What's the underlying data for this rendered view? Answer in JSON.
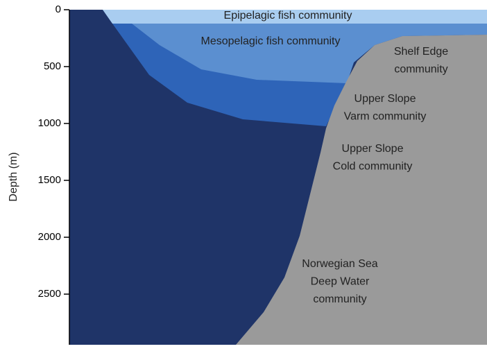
{
  "y_axis": {
    "label": "Depth (m)",
    "ticks": [
      0,
      500,
      1000,
      1500,
      2000,
      2500
    ],
    "range": [
      0,
      2945
    ]
  },
  "regions": [
    {
      "lines": [
        "Epipelagic fish community"
      ]
    },
    {
      "lines": [
        "Mesopelagic fish community"
      ]
    },
    {
      "lines": [
        "Shelf Edge",
        "community"
      ]
    },
    {
      "lines": [
        "Upper Slope",
        "Varm community"
      ]
    },
    {
      "lines": [
        "Upper Slope",
        "Cold community"
      ]
    },
    {
      "lines": [
        "Norwegian Sea",
        "Deep Water",
        "community"
      ]
    }
  ]
}
